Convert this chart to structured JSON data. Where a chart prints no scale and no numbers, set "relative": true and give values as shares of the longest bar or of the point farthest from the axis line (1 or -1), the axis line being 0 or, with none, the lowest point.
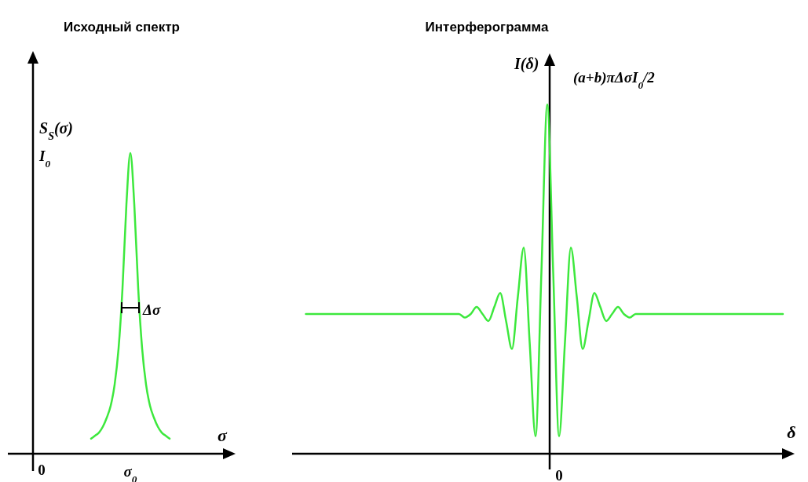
{
  "chart_data": [
    {
      "type": "line",
      "title": "Исходный спектр",
      "xlabel": "σ",
      "ylabel": "S$_{S}$(σ)",
      "relative": true,
      "annotations": [
        "I$_{0}$",
        "0",
        "σ$_{0}$",
        "Δσ"
      ],
      "categories": [
        null,
        null,
        null,
        null,
        null,
        null,
        null,
        null,
        null,
        null,
        null,
        null,
        null,
        null,
        null,
        null,
        null,
        null,
        null,
        null,
        null,
        null,
        null,
        null,
        null,
        null,
        null,
        null,
        null,
        null,
        null,
        null,
        null,
        null,
        null,
        null,
        null,
        null,
        null,
        null,
        null,
        null,
        null,
        null,
        null,
        null,
        null,
        null,
        null,
        null,
        null,
        null,
        null,
        null,
        null,
        null,
        null
      ],
      "series": [
        {
          "color": "#3de83d",
          "values": [
            null,
            null,
            null,
            null,
            null,
            null,
            null,
            null,
            null,
            null,
            null,
            null,
            null,
            null,
            null,
            null,
            null,
            null,
            null,
            null,
            0.05,
            0.06,
            0.07,
            0.09,
            0.12,
            0.16,
            0.23,
            0.35,
            0.55,
            0.83,
            1,
            0.83,
            0.55,
            0.35,
            0.23,
            0.16,
            0.12,
            0.09,
            0.07,
            0.06,
            0.05,
            null,
            null,
            null,
            null,
            null,
            null,
            null,
            null,
            null,
            null,
            null,
            null,
            null,
            null,
            null,
            null
          ]
        }
      ]
    },
    {
      "type": "line",
      "title": "Интерферограмма",
      "xlabel": "δ",
      "ylabel": "I(δ)",
      "relative": true,
      "annotations": [
        "(a+b)πΔσI$_{0}$/2",
        "0"
      ],
      "categories": [
        null,
        null,
        null,
        null,
        null,
        null,
        null,
        null,
        null,
        null,
        null,
        null,
        null,
        null,
        null,
        null,
        null,
        null,
        null,
        null,
        null,
        null,
        null,
        null,
        null,
        null,
        null,
        null,
        null,
        null,
        null,
        null,
        null,
        null,
        null,
        null,
        null,
        null,
        null,
        null,
        null,
        null,
        null,
        null,
        null,
        null,
        null,
        null,
        null,
        null,
        null,
        null,
        null,
        null,
        null,
        null,
        null,
        null,
        null,
        null,
        null,
        null,
        null,
        null,
        null,
        null,
        null,
        null,
        null,
        null,
        null,
        null,
        null,
        null,
        null,
        null,
        null,
        null,
        null,
        null,
        null,
        null,
        null,
        null
      ],
      "series": [
        {
          "color": "#3de83d",
          "values": [
            null,
            0.4,
            0.4,
            0.4,
            0.4,
            0.4,
            0.4,
            0.4,
            0.4,
            0.4,
            0.4,
            0.4,
            0.4,
            0.4,
            0.4,
            0.4,
            0.4,
            0.4,
            0.4,
            0.4,
            0.4,
            0.4,
            0.4,
            0.4,
            0.4,
            0.4,
            0.4,
            0.4,
            0.39,
            0.4,
            0.42,
            0.4,
            0.38,
            0.42,
            0.46,
            0.38,
            0.3,
            0.45,
            0.59,
            0.32,
            0.05,
            0.52,
            1,
            0.52,
            0.05,
            0.32,
            0.59,
            0.45,
            0.3,
            0.38,
            0.46,
            0.42,
            0.38,
            0.4,
            0.42,
            0.4,
            0.39,
            0.4,
            0.4,
            0.4,
            0.4,
            0.4,
            0.4,
            0.4,
            0.4,
            0.4,
            0.4,
            0.4,
            0.4,
            0.4,
            0.4,
            0.4,
            0.4,
            0.4,
            0.4,
            0.4,
            0.4,
            0.4,
            0.4,
            0.4,
            0.4,
            0.4,
            0.4,
            null
          ]
        }
      ]
    }
  ]
}
